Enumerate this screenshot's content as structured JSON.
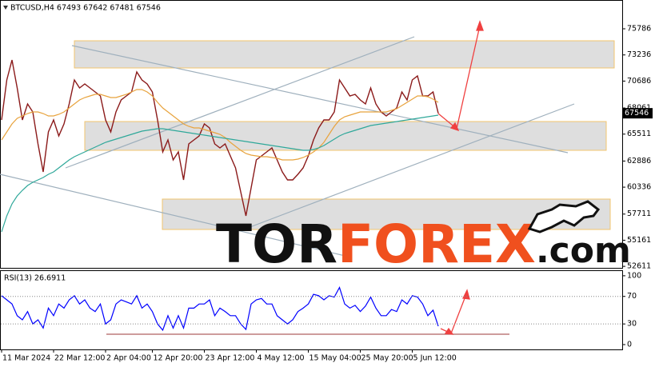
{
  "chart_data": [
    {
      "type": "line",
      "title": "BTCUSD,H4 67493 67642 67481 67546",
      "categories": [
        "11 Mar 2024",
        null,
        null,
        null,
        null,
        null,
        null,
        null,
        null,
        null,
        "22 Mar 12:00",
        null,
        null,
        null,
        null,
        null,
        null,
        null,
        null,
        null,
        "2 Apr 04:00",
        null,
        null,
        null,
        null,
        null,
        null,
        null,
        null,
        "12 Apr 20:00",
        null,
        null,
        null,
        null,
        null,
        null,
        null,
        null,
        null,
        "23 Apr 12:00",
        null,
        null,
        null,
        null,
        null,
        null,
        null,
        null,
        null,
        "4 May 12:00",
        null,
        null,
        null,
        null,
        null,
        null,
        null,
        null,
        null,
        "15 May 04:00",
        null,
        null,
        null,
        null,
        null,
        null,
        null,
        null,
        null,
        "25 May 20:00",
        null,
        null,
        null,
        null,
        null,
        null,
        null,
        null,
        null,
        "5 Jun 12:00",
        null,
        null,
        null,
        null,
        null
      ],
      "series": [
        {
          "color": "#8b1a1a",
          "values": [
            66895,
            70795,
            72745,
            70015,
            66895,
            68455,
            67675,
            64555,
            61825,
            65725,
            66895,
            65335,
            66505,
            68455,
            70795,
            70015,
            70405,
            70015,
            69625,
            69235,
            66895,
            65725,
            67675,
            68845,
            69235,
            69625,
            71575,
            70795,
            70405,
            69625,
            66895,
            63775,
            64945,
            62995,
            63775,
            61045,
            64555,
            64945,
            65335,
            66505,
            66115,
            64555,
            64165,
            64555,
            63385,
            62215,
            59875,
            57535,
            60265,
            62995,
            63385,
            63775,
            64165,
            62995,
            61825,
            61045,
            61045,
            61591,
            62215,
            63385,
            64945,
            66115,
            66895,
            66895,
            67675,
            70795,
            70015,
            69235,
            69391,
            68845,
            68455,
            70015,
            68455,
            67675,
            67285,
            67675,
            68065,
            69625,
            68845,
            70795,
            71185,
            69235,
            69235,
            69625,
            67546
          ]
        },
        {
          "color": "#e8a33d",
          "values": [
            64945,
            65725,
            66505,
            67051,
            67285,
            67519,
            67675,
            67675,
            67519,
            67285,
            67285,
            67441,
            67675,
            68065,
            68455,
            68845,
            69079,
            69235,
            69391,
            69391,
            69235,
            69079,
            69079,
            69235,
            69391,
            69625,
            69859,
            69859,
            69625,
            69235,
            68611,
            68065,
            67675,
            67285,
            66895,
            66505,
            66271,
            66115,
            66115,
            65959,
            65803,
            65647,
            65491,
            65179,
            64711,
            64321,
            63931,
            63619,
            63463,
            63385,
            63307,
            63307,
            63229,
            63151,
            62995,
            62995,
            62995,
            63073,
            63229,
            63463,
            63775,
            64165,
            64711,
            65491,
            66271,
            66895,
            67207,
            67363,
            67519,
            67675,
            67675,
            67675,
            67675,
            67675,
            67675,
            67831,
            67987,
            68299,
            68611,
            68923,
            69235,
            69235,
            69157,
            68923,
            68611
          ]
        },
        {
          "color": "#2fa89a",
          "values": [
            55975,
            57535,
            58705,
            59485,
            60031,
            60499,
            60811,
            61045,
            61279,
            61591,
            61825,
            62215,
            62605,
            62995,
            63307,
            63541,
            63775,
            64009,
            64243,
            64477,
            64711,
            64867,
            65023,
            65179,
            65335,
            65491,
            65647,
            65803,
            65881,
            65959,
            66037,
            66037,
            65959,
            65881,
            65803,
            65725,
            65647,
            65569,
            65491,
            65413,
            65335,
            65257,
            65179,
            65101,
            65023,
            64945,
            64867,
            64789,
            64711,
            64633,
            64555,
            64477,
            64399,
            64321,
            64243,
            64165,
            64087,
            64009,
            63931,
            63931,
            64009,
            64165,
            64399,
            64711,
            65023,
            65335,
            65569,
            65725,
            65881,
            66037,
            66193,
            66349,
            66427,
            66505,
            66583,
            66661,
            66739,
            66817,
            66895,
            66973,
            67051,
            67129,
            67207,
            67285,
            67363
          ]
        }
      ],
      "ylim": [
        52387,
        78595
      ],
      "yticks": [
        75786,
        73236,
        70686,
        68061,
        65511,
        62886,
        60336,
        57711,
        55161,
        52611
      ]
    },
    {
      "type": "line",
      "title": "RSI(13) 26.6911",
      "series": [
        {
          "color": "#0000ff",
          "values": [
            71,
            65,
            59,
            42,
            36,
            48,
            30,
            36,
            24,
            53,
            42,
            59,
            53,
            65,
            71,
            59,
            65,
            53,
            48,
            59,
            30,
            36,
            59,
            65,
            62,
            59,
            71,
            53,
            59,
            48,
            30,
            21,
            42,
            24,
            42,
            24,
            53,
            53,
            59,
            59,
            65,
            42,
            53,
            48,
            42,
            42,
            30,
            22,
            59,
            65,
            67,
            59,
            59,
            42,
            36,
            30,
            36,
            48,
            53,
            59,
            73,
            71,
            65,
            71,
            69,
            83,
            59,
            53,
            57,
            48,
            56,
            69,
            53,
            42,
            42,
            51,
            48,
            65,
            59,
            71,
            69,
            59,
            42,
            50,
            26.6911
          ]
        }
      ],
      "ylim": [
        -7,
        108
      ],
      "yticks": [
        100,
        70,
        30,
        0
      ]
    }
  ],
  "watermark": [
    "TOR",
    "FOREX",
    ".com"
  ]
}
